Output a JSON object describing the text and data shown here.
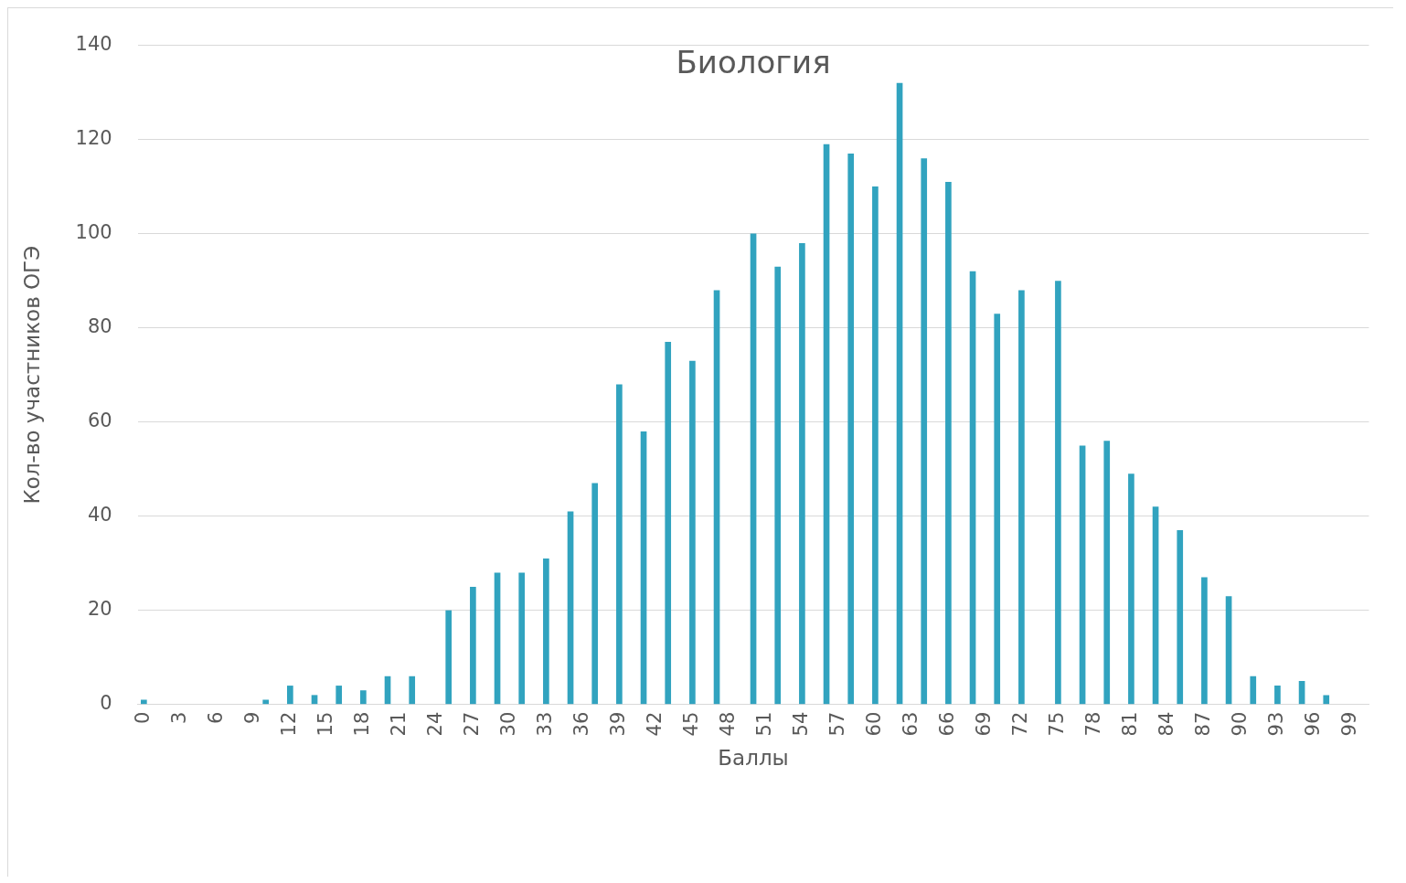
{
  "chart_data": {
    "type": "bar",
    "title": "Биология",
    "xlabel": "Баллы",
    "ylabel": "Кол-во участников ОГЭ",
    "categories": [
      "0",
      null,
      null,
      "3",
      null,
      null,
      "6",
      null,
      null,
      "9",
      null,
      null,
      "12",
      null,
      null,
      "15",
      null,
      null,
      "18",
      null,
      null,
      "21",
      null,
      null,
      "24",
      null,
      null,
      "27",
      null,
      null,
      "30",
      null,
      null,
      "33",
      null,
      null,
      "36",
      null,
      null,
      "39",
      null,
      null,
      "42",
      null,
      null,
      "45",
      null,
      null,
      "48",
      null,
      null,
      "51",
      null,
      null,
      "54",
      null,
      null,
      "57",
      null,
      null,
      "60",
      null,
      null,
      "63",
      null,
      null,
      "66",
      null,
      null,
      "69",
      null,
      null,
      "72",
      null,
      null,
      "75",
      null,
      null,
      "78",
      null,
      null,
      "81",
      null,
      null,
      "84",
      null,
      null,
      "87",
      null,
      null,
      "90",
      null,
      null,
      "93",
      null,
      null,
      "96",
      null,
      null,
      "99",
      null
    ],
    "values": [
      1,
      0,
      0,
      0,
      0,
      0,
      0,
      0,
      0,
      0,
      1,
      0,
      4,
      0,
      2,
      0,
      4,
      0,
      3,
      0,
      6,
      0,
      6,
      0,
      0,
      20,
      0,
      25,
      0,
      28,
      0,
      28,
      0,
      31,
      0,
      41,
      0,
      47,
      0,
      68,
      0,
      58,
      0,
      77,
      0,
      73,
      0,
      88,
      0,
      0,
      100,
      0,
      93,
      0,
      98,
      0,
      119,
      0,
      117,
      0,
      110,
      0,
      132,
      0,
      116,
      0,
      111,
      0,
      92,
      0,
      83,
      0,
      88,
      0,
      0,
      90,
      0,
      55,
      0,
      56,
      0,
      49,
      0,
      42,
      0,
      37,
      0,
      27,
      0,
      23,
      0,
      6,
      0,
      4,
      0,
      5,
      0,
      2,
      0,
      0,
      0
    ],
    "color": "#31a3bf",
    "ylim": [
      0,
      140
    ],
    "yticks": [
      0,
      20,
      40,
      60,
      80,
      100,
      120,
      140
    ],
    "grid": "y",
    "legend": false
  }
}
